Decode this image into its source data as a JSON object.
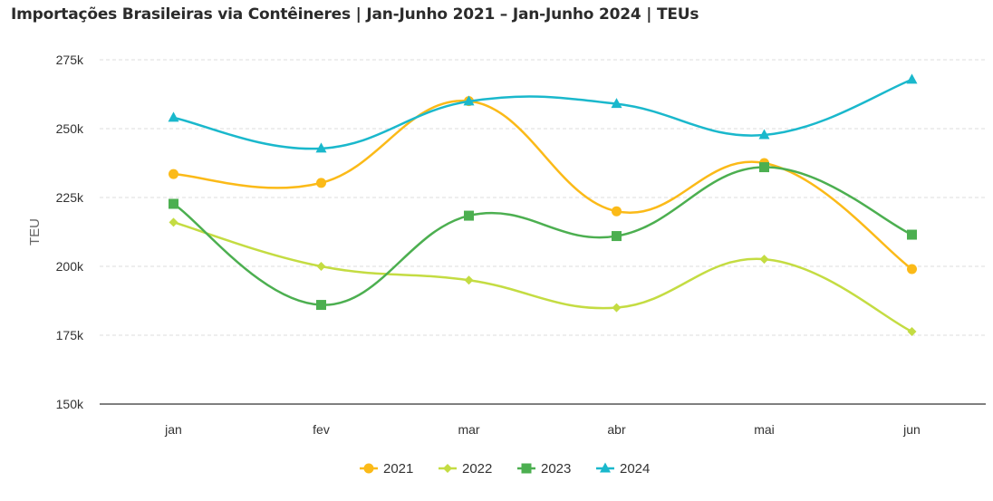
{
  "chart_data": {
    "type": "line",
    "title": "Importações Brasileiras via Contêineres | Jan-Junho 2021 – Jan-Junho 2024 | TEUs",
    "xlabel": "",
    "ylabel": "TEU",
    "categories": [
      "jan",
      "fev",
      "mar",
      "abr",
      "mai",
      "jun"
    ],
    "ylim": [
      150000,
      275000
    ],
    "yticks": [
      150000,
      175000,
      200000,
      225000,
      250000,
      275000
    ],
    "ytick_labels": [
      "150k",
      "175k",
      "200k",
      "225k",
      "250k",
      "275k"
    ],
    "grid": true,
    "legend_position": "bottom-center",
    "smooth": true,
    "series": [
      {
        "name": "2021",
        "color": "#FBBA18",
        "marker": "circle",
        "values": [
          233500,
          230300,
          260000,
          220000,
          237500,
          199000
        ]
      },
      {
        "name": "2022",
        "color": "#C4DC42",
        "marker": "diamond",
        "values": [
          216000,
          200000,
          195000,
          185000,
          202600,
          176300
        ]
      },
      {
        "name": "2023",
        "color": "#4CAF50",
        "marker": "square",
        "values": [
          222700,
          186000,
          218400,
          211000,
          236000,
          211500
        ]
      },
      {
        "name": "2024",
        "color": "#1AB8CC",
        "marker": "triangle",
        "values": [
          254000,
          242800,
          259900,
          259000,
          247700,
          267800
        ]
      }
    ]
  }
}
